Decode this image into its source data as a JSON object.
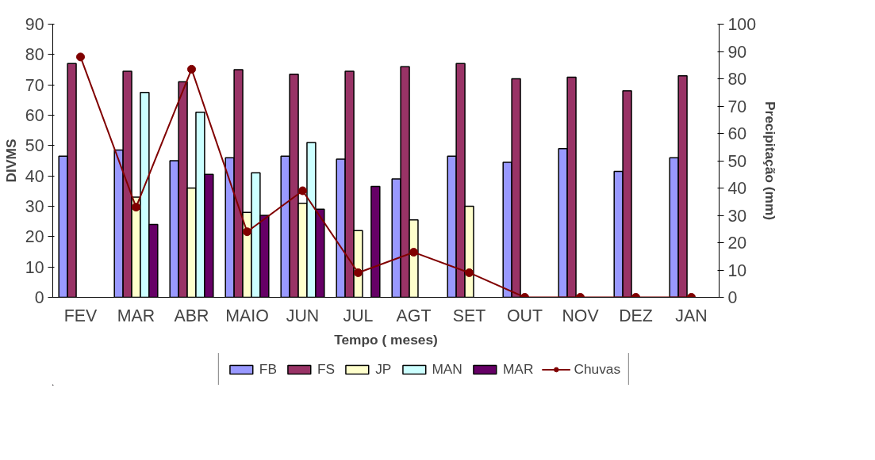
{
  "chart_data": {
    "type": "bar",
    "xlabel": "Tempo ( meses)",
    "ylabel": "DIVMS",
    "y2label": "Precipitação (mm)",
    "categories": [
      "FEV",
      "MAR",
      "ABR",
      "MAIO",
      "JUN",
      "JUL",
      "AGT",
      "SET",
      "OUT",
      "NOV",
      "DEZ",
      "JAN"
    ],
    "ylim": [
      0,
      90
    ],
    "yticks": [
      0,
      10,
      20,
      30,
      40,
      50,
      60,
      70,
      80,
      90
    ],
    "y2lim": [
      0,
      100
    ],
    "y2ticks": [
      0,
      10,
      20,
      30,
      40,
      50,
      60,
      70,
      80,
      90,
      100
    ],
    "grid": false,
    "legend": "bottom",
    "series": [
      {
        "name": "FB",
        "color": "#9999ff",
        "values": [
          46.5,
          48.5,
          45,
          46,
          46.5,
          45.5,
          39,
          46.5,
          44.5,
          49,
          41.5,
          46
        ]
      },
      {
        "name": "FS",
        "color": "#993366",
        "values": [
          77,
          74.5,
          71,
          75,
          73.5,
          74.5,
          76,
          77,
          72,
          72.5,
          68,
          73
        ]
      },
      {
        "name": "JP",
        "color": "#ffffcc",
        "values": [
          null,
          33,
          36,
          28,
          31,
          22,
          25.5,
          30,
          null,
          null,
          null,
          null
        ]
      },
      {
        "name": "MAN",
        "color": "#ccffff",
        "values": [
          null,
          67.5,
          61,
          41,
          51,
          null,
          null,
          null,
          null,
          null,
          null,
          null
        ]
      },
      {
        "name": "MAR",
        "color": "#660066",
        "values": [
          null,
          24,
          40.5,
          27,
          29,
          36.5,
          null,
          null,
          null,
          null,
          null,
          null
        ]
      },
      {
        "name": "Chuvas",
        "type": "line",
        "axis": "y2",
        "marker": "circle",
        "color": "#800000",
        "values": [
          88,
          33,
          83.5,
          24,
          39,
          9,
          16.5,
          9,
          0,
          0,
          0,
          0
        ]
      }
    ]
  }
}
